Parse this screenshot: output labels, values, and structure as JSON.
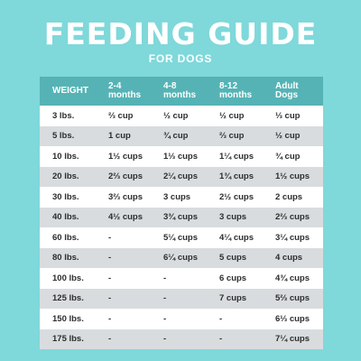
{
  "header": {
    "title": "FEEDING GUIDE",
    "subtitle": "FOR DOGS"
  },
  "colors": {
    "background": "#7fd8da",
    "header_row": "#56b3b5",
    "row_white": "#ffffff",
    "row_grey": "#d8dcdf",
    "text": "#2d2d2d"
  },
  "table": {
    "columns": [
      {
        "line1": "WEIGHT",
        "line2": ""
      },
      {
        "line1": "2-4",
        "line2": "months"
      },
      {
        "line1": "4-8",
        "line2": "months"
      },
      {
        "line1": "8-12",
        "line2": "months"
      },
      {
        "line1": "Adult",
        "line2": "Dogs"
      }
    ],
    "rows": [
      [
        "3 lbs.",
        "⅔ cup",
        "½ cup",
        "½ cup",
        "⅓ cup"
      ],
      [
        "5 lbs.",
        "1 cup",
        "¾ cup",
        "⅔ cup",
        "½ cup"
      ],
      [
        "10 lbs.",
        "1½ cups",
        "1⅓ cups",
        "1¼ cups",
        "¾ cup"
      ],
      [
        "20 lbs.",
        "2⅔ cups",
        "2¼ cups",
        "1¾ cups",
        "1½ cups"
      ],
      [
        "30 lbs.",
        "3⅔ cups",
        "3 cups",
        "2½ cups",
        "2 cups"
      ],
      [
        "40 lbs.",
        "4½ cups",
        "3¾ cups",
        "3 cups",
        "2⅔ cups"
      ],
      [
        "60 lbs.",
        "-",
        "5¼ cups",
        "4¼ cups",
        "3¼ cups"
      ],
      [
        "80 lbs.",
        "-",
        "6¼ cups",
        "5 cups",
        "4 cups"
      ],
      [
        "100 lbs.",
        "-",
        "-",
        "6 cups",
        "4¾ cups"
      ],
      [
        "125 lbs.",
        "-",
        "-",
        "7 cups",
        "5⅔ cups"
      ],
      [
        "150 lbs.",
        "-",
        "-",
        "-",
        "6⅓ cups"
      ],
      [
        "175 lbs.",
        "-",
        "-",
        "-",
        "7¼ cups"
      ]
    ]
  }
}
